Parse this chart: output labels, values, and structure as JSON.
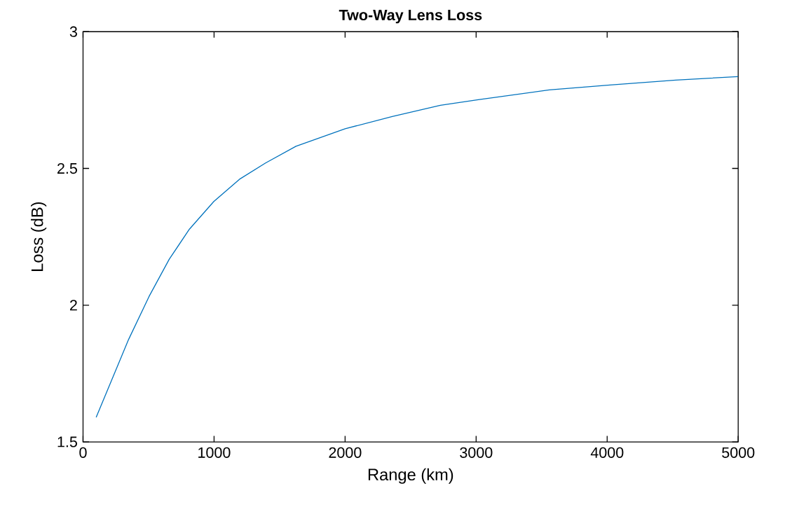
{
  "chart_data": {
    "type": "line",
    "title": "Two-Way Lens Loss",
    "xlabel": "Range (km)",
    "ylabel": "Loss (dB)",
    "xlim": [
      0,
      5000
    ],
    "ylim": [
      1.5,
      3
    ],
    "xticks": [
      0,
      1000,
      2000,
      3000,
      4000,
      5000
    ],
    "yticks": [
      1.5,
      2,
      {
        "value": 2.5,
        "label": "2.5"
      },
      3
    ],
    "series": [
      {
        "color": "#0072bd",
        "x": [
          100,
          348,
          503,
          658,
          812,
          998,
          1199,
          1393,
          1625,
          2000,
          2360,
          2727,
          3016,
          3558,
          4022,
          4524,
          5000
        ],
        "values": [
          1.59,
          1.875,
          2.031,
          2.168,
          2.278,
          2.379,
          2.462,
          2.52,
          2.581,
          2.645,
          2.69,
          2.731,
          2.751,
          2.787,
          2.805,
          2.823,
          2.836
        ]
      }
    ]
  }
}
